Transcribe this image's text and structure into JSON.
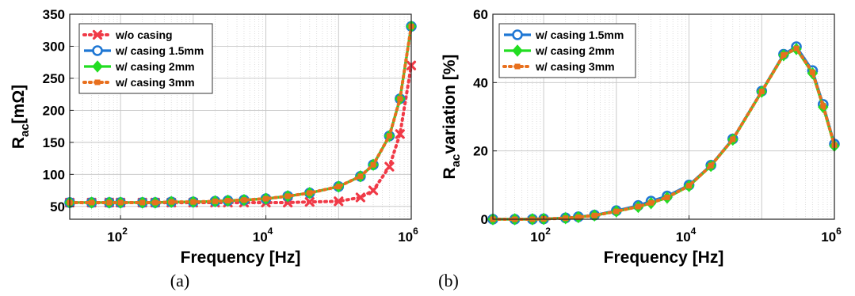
{
  "chart_data": [
    {
      "type": "line",
      "xscale": "log",
      "xlim": [
        20,
        1000000
      ],
      "ylim": [
        30,
        350
      ],
      "xlabel": "Frequency [Hz]",
      "ylabel_main": "R",
      "ylabel_sub": "ac",
      "ylabel_rest": "[mΩ]",
      "x_ticks": [
        100,
        10000,
        1000000
      ],
      "x_tick_labels": [
        [
          "10",
          "2"
        ],
        [
          "10",
          "4"
        ],
        [
          "10",
          "6"
        ]
      ],
      "y_ticks": [
        50,
        100,
        150,
        200,
        250,
        300,
        350
      ],
      "y_tick_labels": [
        "50",
        "100",
        "150",
        "200",
        "250",
        "300",
        "350"
      ],
      "grid": true,
      "legend_position": "top-left",
      "caption": "(a)",
      "x": [
        20,
        40,
        70,
        100,
        200,
        300,
        500,
        1000,
        2000,
        3000,
        5000,
        10000,
        20000,
        40000,
        100000,
        200000,
        300000,
        500000,
        700000,
        1000000
      ],
      "series": [
        {
          "name": "w/o casing",
          "color": "#f03a47",
          "style": "dotted",
          "marker": "x",
          "values": [
            56,
            56,
            56,
            56,
            56,
            56,
            56,
            56,
            56,
            56,
            56,
            56,
            56,
            57,
            58,
            64,
            75,
            112,
            163,
            270
          ]
        },
        {
          "name": "w/ casing 1.5mm",
          "color": "#1f77d4",
          "style": "solid",
          "marker": "circle",
          "values": [
            56,
            56,
            56,
            56,
            56,
            56,
            57,
            57,
            58,
            59,
            60,
            62,
            66,
            71,
            81,
            97,
            115,
            160,
            218,
            331
          ]
        },
        {
          "name": "w/ casing 2mm",
          "color": "#22dd22",
          "style": "solid",
          "marker": "diamond",
          "values": [
            56,
            56,
            56,
            56,
            56,
            56,
            57,
            57,
            58,
            59,
            60,
            62,
            66,
            71,
            81,
            97,
            115,
            160,
            218,
            331
          ]
        },
        {
          "name": "w/ casing 3mm",
          "color": "#e8701e",
          "style": "dotted",
          "marker": "square",
          "values": [
            56,
            56,
            56,
            56,
            56,
            56,
            57,
            57,
            58,
            59,
            60,
            62,
            66,
            71,
            81,
            97,
            115,
            160,
            218,
            331
          ]
        }
      ]
    },
    {
      "type": "line",
      "xscale": "log",
      "xlim": [
        20,
        1000000
      ],
      "ylim": [
        0,
        60
      ],
      "xlabel": "Frequency [Hz]",
      "ylabel_main": "R",
      "ylabel_sub": "ac",
      "ylabel_rest": "variation [%]",
      "x_ticks": [
        100,
        10000,
        1000000
      ],
      "x_tick_labels": [
        [
          "10",
          "2"
        ],
        [
          "10",
          "4"
        ],
        [
          "10",
          "6"
        ]
      ],
      "y_ticks": [
        0,
        20,
        40,
        60
      ],
      "y_tick_labels": [
        "0",
        "20",
        "40",
        "60"
      ],
      "grid": true,
      "legend_position": "top-left",
      "caption": "(b)",
      "x": [
        20,
        40,
        70,
        100,
        200,
        300,
        500,
        1000,
        2000,
        3000,
        5000,
        10000,
        20000,
        40000,
        100000,
        200000,
        300000,
        500000,
        700000,
        1000000
      ],
      "series": [
        {
          "name": "w/ casing 1.5mm",
          "color": "#1f77d4",
          "style": "solid",
          "marker": "circle",
          "values": [
            0,
            0,
            0,
            0.1,
            0.4,
            0.7,
            1.2,
            2.5,
            4,
            5.3,
            6.8,
            10,
            15.8,
            23.5,
            37.5,
            48.3,
            50.5,
            43.5,
            33.6,
            22
          ]
        },
        {
          "name": "w/ casing 2mm",
          "color": "#22dd22",
          "style": "solid",
          "marker": "diamond",
          "values": [
            0,
            0,
            0,
            0.1,
            0.3,
            0.6,
            1.1,
            2.3,
            3.6,
            4.7,
            6.3,
            9.7,
            15.6,
            23.3,
            37.3,
            48,
            49.8,
            42.7,
            32.8,
            21.5
          ]
        },
        {
          "name": "w/ casing 3mm",
          "color": "#e8701e",
          "style": "dotted",
          "marker": "square",
          "values": [
            0,
            0,
            0,
            0.1,
            0.3,
            0.6,
            1.1,
            2.3,
            3.7,
            4.8,
            6.4,
            9.8,
            15.7,
            23.4,
            37.4,
            48.1,
            50,
            43,
            33.2,
            21.7
          ]
        }
      ]
    }
  ]
}
